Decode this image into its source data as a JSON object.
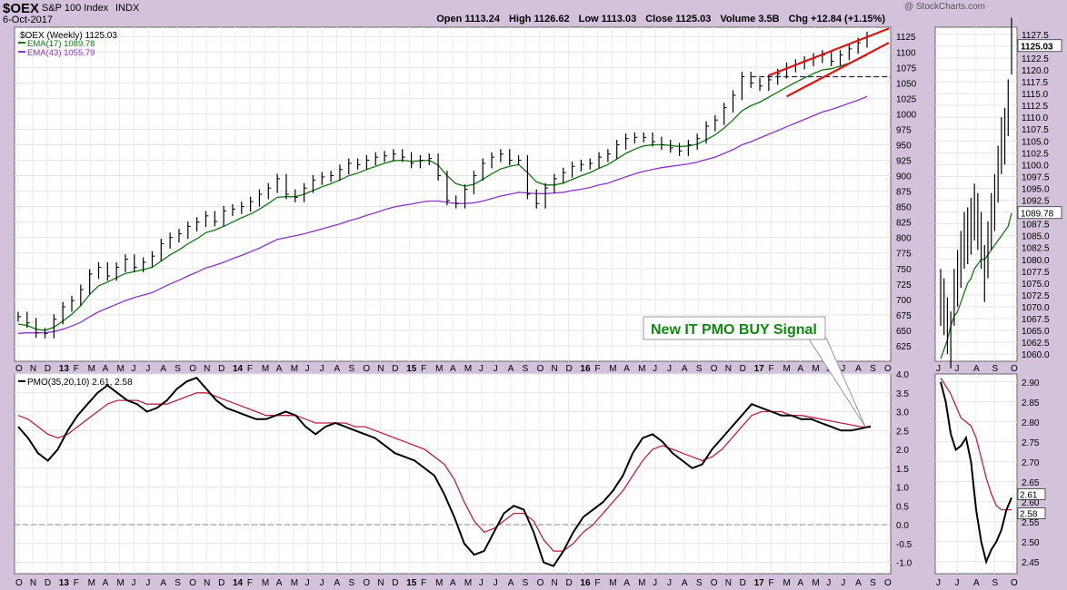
{
  "header": {
    "symbol": "$OEX",
    "name": "S&P 100 Index",
    "exchange": "INDX",
    "date": "6-Oct-2017",
    "watermark": "@ StockCharts.com",
    "ohlc": [
      {
        "label": "Open",
        "value": "1113.24"
      },
      {
        "label": "High",
        "value": "1126.62"
      },
      {
        "label": "Low",
        "value": "1113.03"
      },
      {
        "label": "Close",
        "value": "1125.03"
      },
      {
        "label": "Volume",
        "value": "3.5B"
      },
      {
        "label": "Chg",
        "value": "+12.84 (+1.15%)"
      }
    ]
  },
  "annotation": {
    "text": "New IT PMO BUY Signal",
    "color": "#118811"
  },
  "colors": {
    "price": "#000000",
    "ema17": "#117711",
    "ema43": "#8833cc",
    "pmo": "#000000",
    "signal": "#bb2244",
    "channel": "#e01010",
    "zero": "#888888",
    "panel_bg": "#ffffff",
    "frame_bg": "#d3c2dc"
  },
  "chart_data": [
    {
      "type": "line",
      "title": "$OEX (Weekly) 1125.03",
      "panel": "price-weekly",
      "legend_position": "top-left",
      "grid": true,
      "x_labels": [
        "O",
        "N",
        "D",
        "13",
        "F",
        "M",
        "A",
        "M",
        "J",
        "J",
        "A",
        "S",
        "O",
        "N",
        "D",
        "14",
        "F",
        "M",
        "A",
        "M",
        "J",
        "J",
        "A",
        "S",
        "O",
        "N",
        "D",
        "15",
        "F",
        "M",
        "A",
        "M",
        "J",
        "J",
        "A",
        "S",
        "O",
        "N",
        "D",
        "16",
        "F",
        "M",
        "A",
        "M",
        "J",
        "J",
        "A",
        "S",
        "O",
        "N",
        "D",
        "17",
        "F",
        "M",
        "A",
        "M",
        "J",
        "J",
        "A",
        "S",
        "O"
      ],
      "y_ticks": [
        "625",
        "650",
        "675",
        "700",
        "725",
        "750",
        "775",
        "800",
        "825",
        "850",
        "875",
        "900",
        "925",
        "950",
        "975",
        "1000",
        "1025",
        "1050",
        "1075",
        "1100",
        "1125"
      ],
      "ylim": [
        600,
        1140
      ],
      "series": [
        {
          "name": "$OEX (Weekly) 1125.03",
          "values": [
            672,
            662,
            646,
            645,
            668,
            688,
            698,
            716,
            741,
            752,
            738,
            752,
            765,
            752,
            760,
            770,
            790,
            800,
            806,
            818,
            825,
            835,
            826,
            843,
            846,
            850,
            858,
            870,
            880,
            895,
            870,
            865,
            880,
            893,
            898,
            900,
            910,
            920,
            918,
            925,
            930,
            932,
            935,
            930,
            920,
            925,
            928,
            900,
            860,
            855,
            878,
            900,
            920,
            930,
            935,
            925,
            925,
            870,
            855,
            880,
            895,
            905,
            915,
            918,
            920,
            930,
            935,
            950,
            960,
            962,
            962,
            955,
            950,
            945,
            940,
            950,
            960,
            980,
            990,
            1010,
            1030,
            1060,
            1050,
            1045,
            1055,
            1065,
            1075,
            1080,
            1085,
            1090,
            1095,
            1085,
            1095,
            1105,
            1115,
            1125
          ]
        },
        {
          "name": "EMA(17) 1089.78",
          "values": [
            660,
            658,
            652,
            650,
            655,
            665,
            676,
            690,
            708,
            722,
            728,
            735,
            742,
            745,
            748,
            752,
            762,
            772,
            780,
            790,
            798,
            808,
            812,
            818,
            825,
            832,
            838,
            846,
            855,
            865,
            866,
            866,
            870,
            876,
            882,
            887,
            893,
            900,
            904,
            910,
            915,
            920,
            924,
            925,
            923,
            924,
            925,
            917,
            900,
            887,
            883,
            886,
            894,
            903,
            911,
            915,
            918,
            905,
            890,
            885,
            885,
            888,
            894,
            900,
            905,
            912,
            918,
            927,
            936,
            943,
            948,
            950,
            950,
            949,
            947,
            948,
            951,
            958,
            966,
            977,
            990,
            1005,
            1013,
            1019,
            1027,
            1035,
            1043,
            1051,
            1058,
            1065,
            1071,
            1073,
            1077,
            1082,
            1088,
            1095
          ]
        },
        {
          "name": "EMA(43) 1055.79",
          "values": [
            645,
            646,
            646,
            646,
            648,
            652,
            657,
            663,
            672,
            680,
            686,
            692,
            698,
            703,
            707,
            711,
            718,
            725,
            731,
            738,
            744,
            751,
            755,
            760,
            766,
            771,
            777,
            783,
            790,
            797,
            800,
            803,
            806,
            810,
            814,
            818,
            822,
            827,
            831,
            836,
            840,
            845,
            849,
            852,
            854,
            857,
            859,
            859,
            857,
            855,
            855,
            856,
            859,
            863,
            867,
            870,
            873,
            872,
            871,
            871,
            872,
            873,
            876,
            878,
            881,
            885,
            888,
            893,
            898,
            903,
            907,
            910,
            913,
            915,
            917,
            919,
            922,
            926,
            930,
            936,
            942,
            950,
            955,
            961,
            967,
            973,
            979,
            985,
            991,
            997,
            1003,
            1007,
            1012,
            1017,
            1022,
            1028
          ]
        }
      ]
    },
    {
      "type": "line",
      "panel": "price-daily-zoom",
      "x_labels": [
        "J",
        "J",
        "A",
        "S",
        "O"
      ],
      "y_ticks": [
        "1060.0",
        "1062.5",
        "1065.0",
        "1067.5",
        "1070.0",
        "1072.5",
        "1075.0",
        "1077.5",
        "1080.0",
        "1082.5",
        "1085.0",
        "1087.5",
        "1090.0",
        "1092.5",
        "1095.0",
        "1097.5",
        "1100.0",
        "1102.5",
        "1105.0",
        "1107.5",
        "1110.0",
        "1112.5",
        "1115.0",
        "1117.5",
        "1120.0",
        "1122.5",
        "1125.0",
        "1127.5"
      ],
      "ylim": [
        1058.5,
        1129
      ],
      "last_value_labels": [
        "1125.03",
        "1089.78"
      ],
      "series": [
        {
          "name": "$OEX (Daily)",
          "values": [
            1072,
            1070,
            1066,
            1063,
            1072,
            1076,
            1080,
            1084,
            1085,
            1087,
            1090,
            1088,
            1084,
            1077,
            1082,
            1088,
            1092,
            1098,
            1104,
            1106,
            1112,
            1125
          ]
        },
        {
          "name": "EMA",
          "values": [
            1059,
            1061,
            1063,
            1066,
            1068,
            1069,
            1071,
            1073,
            1075,
            1076,
            1078,
            1079,
            1080,
            1080,
            1081,
            1082,
            1083,
            1084,
            1085,
            1086,
            1087,
            1089.78
          ]
        }
      ]
    },
    {
      "type": "line",
      "title": "PMO(35,20,10) 2.61, 2.58",
      "panel": "pmo-weekly",
      "legend_position": "top-left",
      "grid": true,
      "y_ticks": [
        "-1.0",
        "-0.5",
        "0.0",
        "0.5",
        "1.0",
        "1.5",
        "2.0",
        "2.5",
        "3.0",
        "3.5",
        "4.0"
      ],
      "ylim": [
        -1.3,
        4.0
      ],
      "series": [
        {
          "name": "PMO(35,20,10)",
          "values": [
            2.6,
            2.3,
            1.9,
            1.7,
            2.0,
            2.5,
            2.9,
            3.2,
            3.5,
            3.7,
            3.5,
            3.3,
            3.2,
            3.0,
            3.1,
            3.3,
            3.6,
            3.8,
            3.9,
            3.6,
            3.3,
            3.1,
            3.0,
            2.9,
            2.8,
            2.8,
            2.9,
            3.0,
            2.9,
            2.6,
            2.4,
            2.6,
            2.7,
            2.6,
            2.5,
            2.4,
            2.3,
            2.1,
            1.9,
            1.8,
            1.7,
            1.5,
            1.3,
            0.8,
            0.2,
            -0.5,
            -0.8,
            -0.7,
            -0.2,
            0.3,
            0.5,
            0.4,
            -0.2,
            -1.0,
            -1.1,
            -0.7,
            -0.2,
            0.2,
            0.4,
            0.6,
            0.9,
            1.3,
            1.9,
            2.3,
            2.4,
            2.2,
            1.9,
            1.7,
            1.5,
            1.6,
            2.0,
            2.3,
            2.6,
            2.9,
            3.2,
            3.1,
            3.0,
            2.9,
            2.9,
            2.8,
            2.8,
            2.7,
            2.6,
            2.5,
            2.5,
            2.55,
            2.61
          ]
        },
        {
          "name": "Signal",
          "values": [
            2.9,
            2.8,
            2.6,
            2.4,
            2.3,
            2.4,
            2.6,
            2.8,
            3.0,
            3.2,
            3.3,
            3.3,
            3.3,
            3.2,
            3.2,
            3.2,
            3.3,
            3.4,
            3.5,
            3.5,
            3.4,
            3.3,
            3.2,
            3.1,
            3.0,
            2.9,
            2.9,
            2.9,
            2.9,
            2.8,
            2.7,
            2.7,
            2.7,
            2.7,
            2.6,
            2.6,
            2.5,
            2.4,
            2.3,
            2.2,
            2.1,
            2.0,
            1.8,
            1.6,
            1.2,
            0.6,
            0.1,
            -0.2,
            -0.1,
            0.1,
            0.3,
            0.3,
            0.1,
            -0.4,
            -0.7,
            -0.7,
            -0.5,
            -0.2,
            0.0,
            0.3,
            0.6,
            0.9,
            1.3,
            1.7,
            2.0,
            2.1,
            2.0,
            1.9,
            1.8,
            1.7,
            1.8,
            2.0,
            2.3,
            2.6,
            2.9,
            3.0,
            3.0,
            3.0,
            2.9,
            2.9,
            2.85,
            2.8,
            2.75,
            2.7,
            2.65,
            2.6,
            2.58
          ]
        }
      ]
    },
    {
      "type": "line",
      "panel": "pmo-daily-zoom",
      "y_ticks": [
        "2.45",
        "2.50",
        "2.55",
        "2.60",
        "2.65",
        "2.70",
        "2.75",
        "2.80",
        "2.85",
        "2.90"
      ],
      "ylim": [
        2.42,
        2.92
      ],
      "last_value_labels": [
        "2.61",
        "2.58"
      ],
      "series": [
        {
          "name": "PMO",
          "values": [
            2.9,
            2.85,
            2.77,
            2.73,
            2.74,
            2.76,
            2.7,
            2.58,
            2.5,
            2.45,
            2.48,
            2.5,
            2.53,
            2.58,
            2.61
          ]
        },
        {
          "name": "Signal",
          "values": [
            2.91,
            2.89,
            2.87,
            2.84,
            2.81,
            2.8,
            2.79,
            2.76,
            2.71,
            2.66,
            2.62,
            2.59,
            2.58,
            2.58,
            2.58
          ]
        }
      ]
    }
  ]
}
